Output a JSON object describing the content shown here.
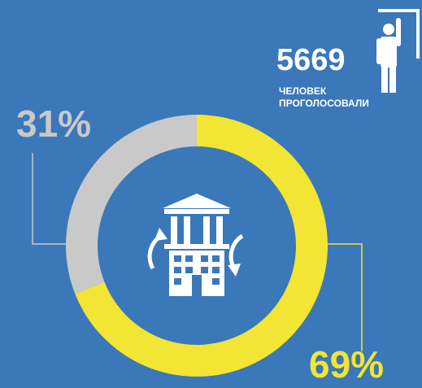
{
  "chart_data": {
    "type": "donut",
    "values": [
      69,
      31
    ],
    "value_labels": [
      "69%",
      "31%"
    ],
    "colors": [
      "#f2e533",
      "#c9c9c9"
    ],
    "annotation": {
      "value": 5669,
      "lines": [
        "ЧЕЛОВЕК",
        "ПРОГОЛОСОВАЛИ"
      ]
    }
  }
}
